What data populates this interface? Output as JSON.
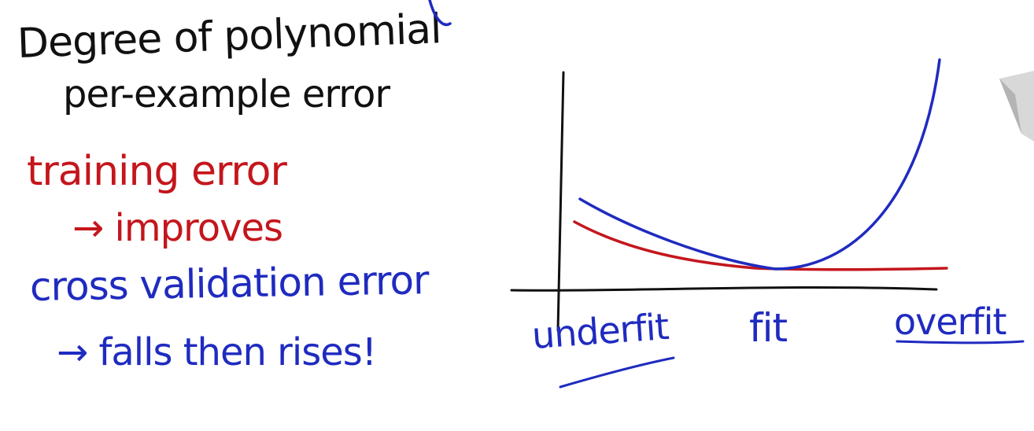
{
  "notes": {
    "degree": "Degree of polynomial",
    "per_example": "per-example error",
    "training_error": "training error",
    "training_trend": "→ improves",
    "cv_error": "cross validation error",
    "cv_trend": "→ falls then rises!"
  },
  "axis_labels": {
    "left": "underfit",
    "middle": "fit",
    "right": "overfit"
  },
  "colors": {
    "ink": "#111111",
    "training": "#c4161c",
    "cross_validation": "#1f2bbf"
  }
}
